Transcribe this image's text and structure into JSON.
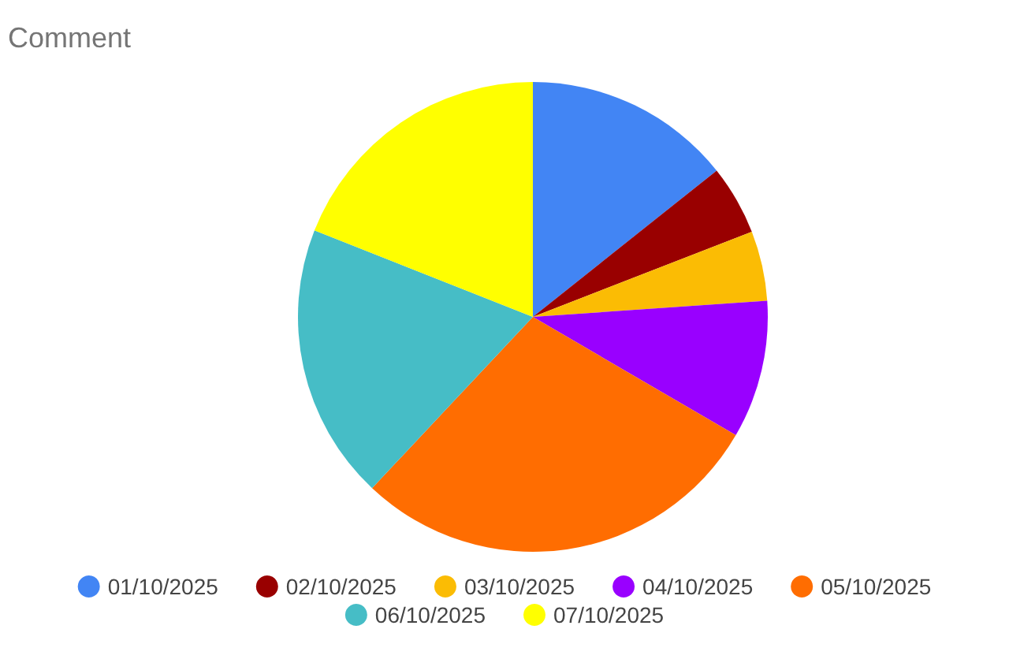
{
  "chart_data": {
    "type": "pie",
    "title": "Comment",
    "categories": [
      "01/10/2025",
      "02/10/2025",
      "03/10/2025",
      "04/10/2025",
      "05/10/2025",
      "06/10/2025",
      "07/10/2025"
    ],
    "values": [
      14.3,
      4.8,
      4.8,
      9.5,
      28.6,
      19.0,
      19.0
    ],
    "colors": [
      "#4285f4",
      "#990000",
      "#fbbc04",
      "#9900ff",
      "#ff6d01",
      "#46bdc6",
      "#ffff00"
    ],
    "legend": "bottom"
  }
}
